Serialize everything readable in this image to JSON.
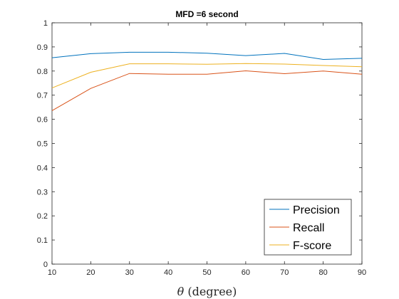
{
  "chart_data": {
    "type": "line",
    "title": "MFD =6 second",
    "xlabel_symbol": "θ",
    "xlabel_text": " (degree)",
    "ylabel": "",
    "xlim": [
      10,
      90
    ],
    "ylim": [
      0,
      1
    ],
    "xticks": [
      10,
      20,
      30,
      40,
      50,
      60,
      70,
      80,
      90
    ],
    "yticks": [
      0,
      0.1,
      0.2,
      0.3,
      0.4,
      0.5,
      0.6,
      0.7,
      0.8,
      0.9,
      1
    ],
    "ytick_labels": [
      "0",
      "0.1",
      "0.2",
      "0.3",
      "0.4",
      "0.5",
      "0.6",
      "0.7",
      "0.8",
      "0.9",
      "1"
    ],
    "grid": false,
    "legend_position": "bottom-right",
    "x": [
      10,
      20,
      30,
      40,
      50,
      60,
      70,
      80,
      90
    ],
    "series": [
      {
        "name": "Precision",
        "color": "#0072BD",
        "values": [
          0.855,
          0.872,
          0.878,
          0.878,
          0.874,
          0.864,
          0.873,
          0.848,
          0.853
        ]
      },
      {
        "name": "Recall",
        "color": "#D95319",
        "values": [
          0.636,
          0.728,
          0.79,
          0.787,
          0.787,
          0.801,
          0.789,
          0.8,
          0.787
        ]
      },
      {
        "name": "F-score",
        "color": "#EDB120",
        "values": [
          0.73,
          0.795,
          0.83,
          0.83,
          0.828,
          0.831,
          0.829,
          0.823,
          0.818
        ]
      }
    ]
  }
}
